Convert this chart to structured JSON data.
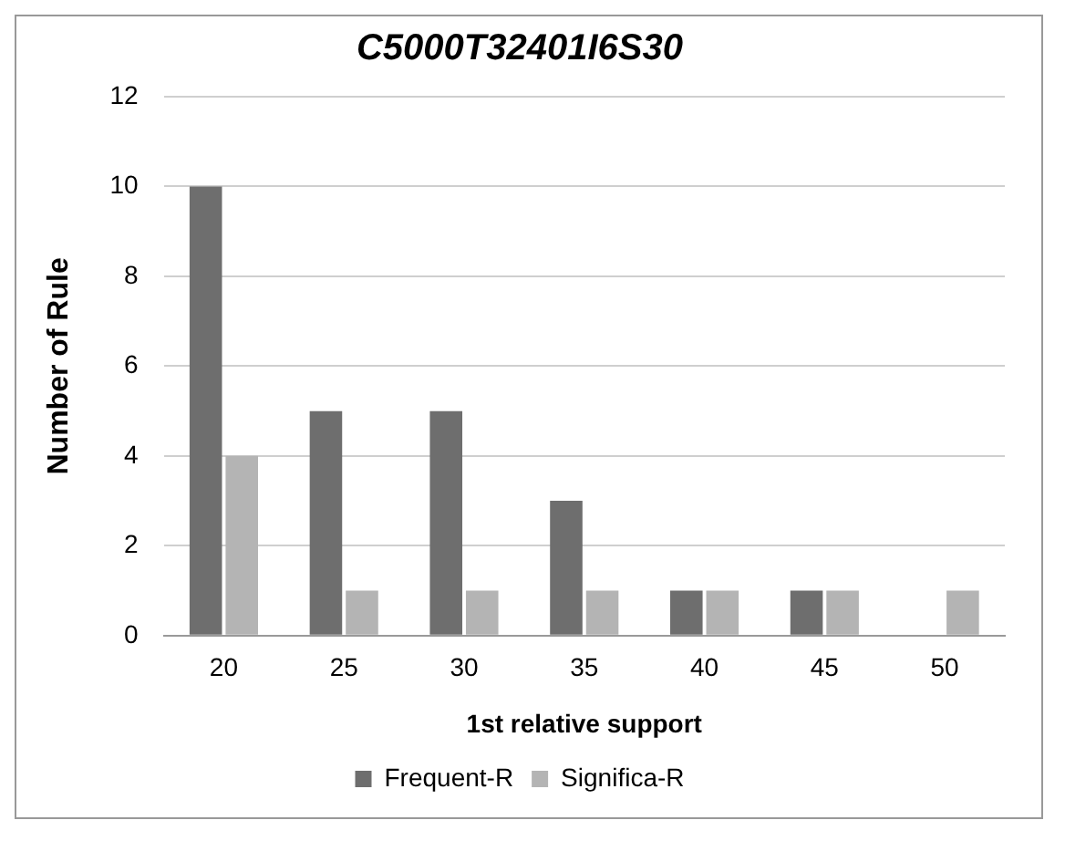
{
  "chart_data": {
    "type": "bar",
    "title": "C5000T32401I6S30",
    "xlabel": "1st relative support",
    "ylabel": "Number of Rule",
    "categories": [
      "20",
      "25",
      "30",
      "35",
      "40",
      "45",
      "50"
    ],
    "series": [
      {
        "name": "Frequent-R",
        "color": "#6e6e6e",
        "values": [
          10,
          5,
          5,
          3,
          1,
          1,
          0
        ]
      },
      {
        "name": "Significa-R",
        "color": "#b4b4b4",
        "values": [
          4,
          1,
          1,
          1,
          1,
          1,
          1
        ]
      }
    ],
    "ylim": [
      0,
      12
    ],
    "yticks": [
      0,
      2,
      4,
      6,
      8,
      10,
      12
    ],
    "grid": "y",
    "legend": "bottom"
  }
}
